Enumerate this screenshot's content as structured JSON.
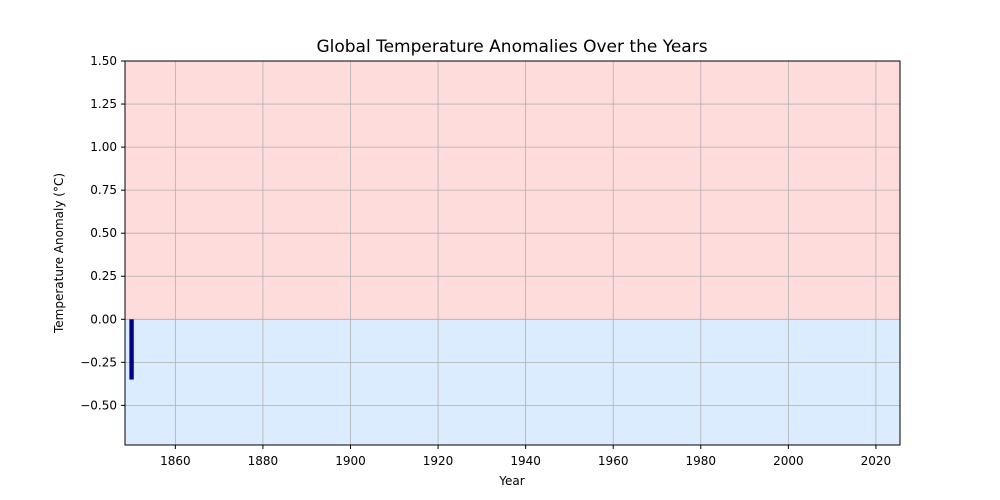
{
  "chart_data": {
    "type": "bar",
    "title": "Global Temperature Anomalies Over the Years",
    "xlabel": "Year",
    "ylabel": "Temperature Anomaly (°C)",
    "xlim": [
      1848.5,
      2025.5
    ],
    "ylim": [
      -0.73,
      1.5
    ],
    "x_ticks": [
      1860,
      1880,
      1900,
      1920,
      1940,
      1960,
      1980,
      2000,
      2020
    ],
    "x_tick_labels": [
      "1860",
      "1880",
      "1900",
      "1920",
      "1940",
      "1960",
      "1980",
      "2000",
      "2020"
    ],
    "y_ticks": [
      -0.5,
      -0.25,
      0,
      0.25,
      0.5,
      0.75,
      1.0,
      1.25,
      1.5
    ],
    "y_tick_labels": [
      "−0.50",
      "−0.25",
      "0.00",
      "0.25",
      "0.50",
      "0.75",
      "1.00",
      "1.25",
      "1.50"
    ],
    "grid": true,
    "bar_width_years": 1,
    "series": [
      {
        "x": [
          1850
        ],
        "values": [
          -0.35
        ]
      }
    ],
    "colors": {
      "positive_region": "#ffdcdc",
      "negative_region": "#dcecff",
      "bar": "#00008b",
      "grid": "#b0b0b0",
      "axes": "#000000"
    }
  }
}
